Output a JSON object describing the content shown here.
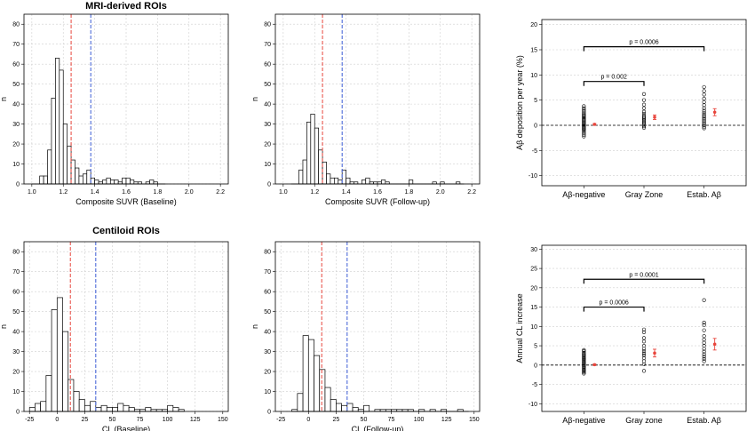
{
  "section_titles": [
    "MRI-derived ROIs",
    "Centiloid ROIs"
  ],
  "colors": {
    "red_line": "#e8453c",
    "blue_line": "#3b5bd6",
    "mean_point": "#e8453c",
    "grid": "#cfcfcf"
  },
  "chart_data": [
    {
      "id": "hist_suvr_baseline",
      "type": "bar",
      "subtype": "histogram",
      "xlabel": "Composite SUVR (Baseline)",
      "ylabel": "n",
      "xlim": [
        0.95,
        2.25
      ],
      "ylim": [
        0,
        85
      ],
      "xticks": [
        1.0,
        1.2,
        1.4,
        1.6,
        1.8,
        2.0,
        2.2
      ],
      "xtick_labels": [
        "1.0",
        "1.2",
        "1.4",
        "1.6",
        "1.8",
        "2.0",
        "2.2"
      ],
      "yticks": [
        0,
        10,
        20,
        30,
        40,
        50,
        60,
        70,
        80
      ],
      "bin_width": 0.025,
      "bin_starts": [
        1.0,
        1.025,
        1.05,
        1.075,
        1.1,
        1.125,
        1.15,
        1.175,
        1.2,
        1.225,
        1.25,
        1.275,
        1.3,
        1.325,
        1.35,
        1.375,
        1.4,
        1.425,
        1.45,
        1.475,
        1.5,
        1.525,
        1.55,
        1.575,
        1.6,
        1.625,
        1.65,
        1.675,
        1.7,
        1.725,
        1.75,
        1.775,
        1.8,
        1.825
      ],
      "counts": [
        0,
        0,
        4,
        4,
        17,
        43,
        63,
        57,
        30,
        19,
        12,
        8,
        4,
        5,
        7,
        3,
        2,
        1,
        2,
        3,
        2,
        2,
        1,
        3,
        3,
        2,
        1,
        1,
        0,
        1,
        2,
        1,
        0,
        0
      ],
      "vlines": [
        {
          "x": 1.25,
          "color": "red"
        },
        {
          "x": 1.375,
          "color": "blue"
        }
      ],
      "grid": true
    },
    {
      "id": "hist_suvr_followup",
      "type": "bar",
      "subtype": "histogram",
      "xlabel": "Composite SUVR (Follow-up)",
      "ylabel": "n",
      "xlim": [
        0.95,
        2.25
      ],
      "ylim": [
        0,
        85
      ],
      "xticks": [
        1.0,
        1.2,
        1.4,
        1.6,
        1.8,
        2.0,
        2.2
      ],
      "xtick_labels": [
        "1.0",
        "1.2",
        "1.4",
        "1.6",
        "1.8",
        "2.0",
        "2.2"
      ],
      "yticks": [
        0,
        10,
        20,
        30,
        40,
        50,
        60,
        70,
        80
      ],
      "bin_width": 0.025,
      "bin_starts": [
        1.05,
        1.075,
        1.1,
        1.125,
        1.15,
        1.175,
        1.2,
        1.225,
        1.25,
        1.275,
        1.3,
        1.325,
        1.35,
        1.375,
        1.4,
        1.425,
        1.45,
        1.475,
        1.5,
        1.525,
        1.55,
        1.575,
        1.6,
        1.625,
        1.65,
        1.675,
        1.7,
        1.725,
        1.75,
        1.775,
        1.8,
        1.825,
        1.85,
        1.875,
        1.9,
        1.925,
        1.95,
        1.975,
        2.0,
        2.025,
        2.05,
        2.075,
        2.1,
        2.125
      ],
      "counts": [
        0,
        0,
        7,
        12,
        31,
        35,
        28,
        17,
        11,
        5,
        3,
        3,
        2,
        7,
        3,
        1,
        1,
        0,
        2,
        3,
        1,
        1,
        1,
        2,
        1,
        0,
        0,
        0,
        0,
        0,
        2,
        0,
        0,
        0,
        0,
        0,
        1,
        0,
        1,
        0,
        0,
        0,
        1,
        0
      ],
      "vlines": [
        {
          "x": 1.25,
          "color": "red"
        },
        {
          "x": 1.375,
          "color": "blue"
        }
      ],
      "grid": true
    },
    {
      "id": "dot_suvr_rate",
      "type": "scatter",
      "subtype": "strip",
      "xlabel": "",
      "ylabel": "Aβ deposition per year (%)",
      "categories": [
        "Aβ-negative",
        "Gray Zone",
        "Estab. Aβ"
      ],
      "ylim": [
        -12,
        21
      ],
      "yticks": [
        -10,
        -5,
        0,
        5,
        10,
        15,
        20
      ],
      "groups": [
        {
          "name": "Aβ-negative",
          "values": [
            -2.2,
            -1.9,
            -1.6,
            -1.3,
            -1.0,
            -0.8,
            -0.6,
            -0.4,
            -0.2,
            0.0,
            0.2,
            0.4,
            0.6,
            0.8,
            1.0,
            1.2,
            1.4,
            1.6,
            1.8,
            2.0,
            2.2,
            2.5,
            2.8,
            3.1,
            3.4,
            3.8
          ],
          "mean": 0.2,
          "err": 0.15
        },
        {
          "name": "Gray Zone",
          "values": [
            -0.5,
            -0.2,
            0.2,
            0.5,
            0.8,
            1.0,
            1.3,
            1.6,
            1.9,
            2.3,
            2.7,
            3.4,
            4.1,
            5.0,
            6.2
          ],
          "mean": 1.6,
          "err": 0.45
        },
        {
          "name": "Estab. Aβ",
          "values": [
            -0.6,
            -0.3,
            0.0,
            0.3,
            0.6,
            0.9,
            1.2,
            1.5,
            1.8,
            2.1,
            2.5,
            2.9,
            3.4,
            4.0,
            4.6,
            5.3,
            6.1,
            6.8,
            7.6
          ],
          "mean": 2.6,
          "err": 0.7
        }
      ],
      "mean_markers": true,
      "hline": 0,
      "annotations": [
        {
          "text": "p = 0.002",
          "from": 0,
          "to": 1,
          "y": 8.7
        },
        {
          "text": "p = 0.0006",
          "from": 0,
          "to": 2,
          "y": 15.6
        }
      ],
      "grid": true
    },
    {
      "id": "hist_cl_baseline",
      "type": "bar",
      "subtype": "histogram",
      "xlabel": "CL (Baseline)",
      "ylabel": "n",
      "xlim": [
        -30,
        155
      ],
      "ylim": [
        0,
        85
      ],
      "xticks": [
        -25,
        0,
        25,
        50,
        75,
        100,
        125,
        150
      ],
      "xtick_labels": [
        "-25",
        "0",
        "25",
        "50",
        "75",
        "100",
        "125",
        "150"
      ],
      "yticks": [
        0,
        10,
        20,
        30,
        40,
        50,
        60,
        70,
        80
      ],
      "bin_width": 5,
      "bin_starts": [
        -25,
        -20,
        -15,
        -10,
        -5,
        0,
        5,
        10,
        15,
        20,
        25,
        30,
        35,
        40,
        45,
        50,
        55,
        60,
        65,
        70,
        75,
        80,
        85,
        90,
        95,
        100,
        105,
        110
      ],
      "counts": [
        2,
        4,
        5,
        18,
        51,
        57,
        40,
        16,
        10,
        6,
        3,
        5,
        2,
        3,
        2,
        2,
        4,
        3,
        2,
        1,
        1,
        2,
        1,
        1,
        1,
        3,
        2,
        1
      ],
      "vlines": [
        {
          "x": 12,
          "color": "red"
        },
        {
          "x": 35,
          "color": "blue"
        }
      ],
      "grid": true
    },
    {
      "id": "hist_cl_followup",
      "type": "bar",
      "subtype": "histogram",
      "xlabel": "CL (Follow-up)",
      "ylabel": "n",
      "xlim": [
        -30,
        155
      ],
      "ylim": [
        0,
        85
      ],
      "xticks": [
        -25,
        0,
        25,
        50,
        75,
        100,
        125,
        150
      ],
      "xtick_labels": [
        "-25",
        "0",
        "25",
        "50",
        "75",
        "100",
        "125",
        "150"
      ],
      "yticks": [
        0,
        10,
        20,
        30,
        40,
        50,
        60,
        70,
        80
      ],
      "bin_width": 5,
      "bin_starts": [
        -15,
        -10,
        -5,
        0,
        5,
        10,
        15,
        20,
        25,
        30,
        35,
        40,
        45,
        50,
        55,
        60,
        65,
        70,
        75,
        80,
        85,
        90,
        95,
        100,
        105,
        110,
        115,
        120,
        125,
        130,
        135,
        140
      ],
      "counts": [
        1,
        9,
        38,
        36,
        28,
        21,
        12,
        6,
        4,
        3,
        4,
        2,
        1,
        3,
        0,
        1,
        1,
        1,
        1,
        1,
        1,
        1,
        0,
        1,
        0,
        1,
        0,
        1,
        0,
        0,
        1,
        0
      ],
      "vlines": [
        {
          "x": 12,
          "color": "red"
        },
        {
          "x": 35,
          "color": "blue"
        }
      ],
      "grid": true
    },
    {
      "id": "dot_cl_rate",
      "type": "scatter",
      "subtype": "strip",
      "xlabel": "",
      "ylabel": "Annual CL increase",
      "categories": [
        "Aβ-negative",
        "Gray zone",
        "Estab. Aβ"
      ],
      "ylim": [
        -12,
        31
      ],
      "yticks": [
        -10,
        -5,
        0,
        5,
        10,
        15,
        20,
        25,
        30
      ],
      "groups": [
        {
          "name": "Aβ-negative",
          "values": [
            -2.2,
            -1.9,
            -1.6,
            -1.3,
            -1.0,
            -0.7,
            -0.4,
            -0.1,
            0.2,
            0.5,
            0.8,
            1.1,
            1.4,
            1.7,
            2.0,
            2.3,
            2.6,
            2.9,
            3.2,
            3.6,
            3.9
          ],
          "mean": 0.1,
          "err": 0.2
        },
        {
          "name": "Gray zone",
          "values": [
            -1.5,
            0.2,
            1.0,
            1.8,
            2.5,
            3.0,
            3.6,
            4.2,
            5.0,
            6.1,
            7.0,
            8.5,
            9.2
          ],
          "mean": 3.1,
          "err": 1.0
        },
        {
          "name": "Estab. Aβ",
          "values": [
            1.0,
            1.6,
            2.2,
            2.8,
            3.5,
            4.2,
            5.0,
            5.8,
            6.6,
            7.5,
            9.0,
            10.4,
            11.0,
            16.8
          ],
          "mean": 5.4,
          "err": 1.5
        }
      ],
      "mean_markers": true,
      "hline": 0,
      "annotations": [
        {
          "text": "p = 0.0006",
          "from": 0,
          "to": 1,
          "y": 15.0
        },
        {
          "text": "p = 0.0001",
          "from": 0,
          "to": 2,
          "y": 22.2
        }
      ],
      "grid": true
    }
  ]
}
